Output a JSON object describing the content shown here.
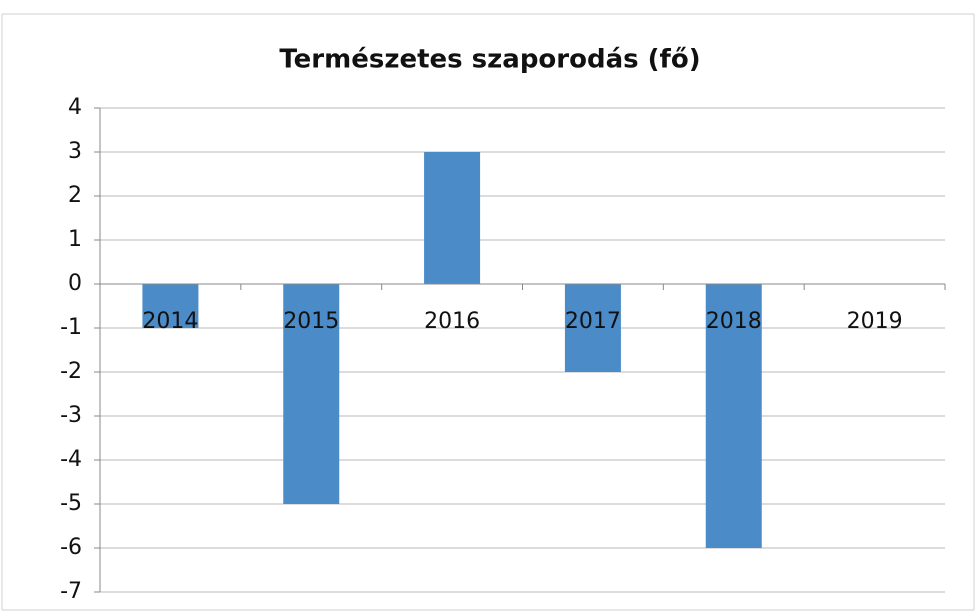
{
  "chart_data": {
    "type": "bar",
    "title": "Természetes szaporodás (fő)",
    "categories": [
      "2014",
      "2015",
      "2016",
      "2017",
      "2018",
      "2019"
    ],
    "values": [
      -1,
      -5,
      3,
      -2,
      -6,
      0
    ],
    "color": "#4a8bc8",
    "ylim": [
      -7,
      4
    ],
    "yticks": [
      -7,
      -6,
      -5,
      -4,
      -3,
      -2,
      -1,
      0,
      1,
      2,
      3,
      4
    ],
    "grid": true
  }
}
